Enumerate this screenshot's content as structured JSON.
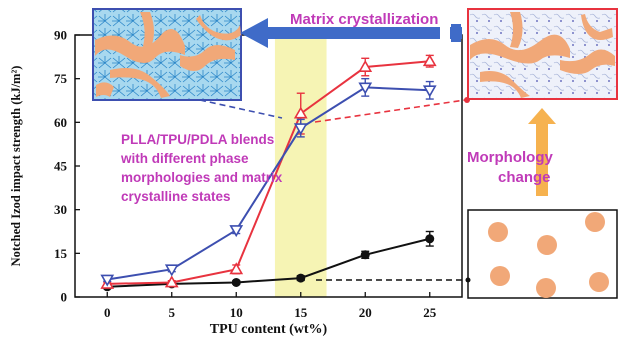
{
  "chart_data": {
    "type": "line",
    "xlabel": "TPU content (wt%)",
    "ylabel": "Notched Izod impact strength (kJ/m²)",
    "xlim": [
      -2.5,
      27.5
    ],
    "ylim": [
      0,
      90
    ],
    "x_ticks": [
      "0",
      "5",
      "10",
      "15",
      "20",
      "25"
    ],
    "y_ticks": [
      "0",
      "15",
      "30",
      "45",
      "60",
      "75",
      "90"
    ],
    "highlight_band": [
      13,
      17
    ],
    "colors": {
      "black": "#111111",
      "red": "#e8333f",
      "blue": "#3d4fb0",
      "band": "#f6f4b4",
      "pink": "#c03ab8",
      "arrow": "#3f6bc8",
      "orange": "#f6b24f"
    },
    "series": [
      {
        "marker": "circle",
        "color": "#111111",
        "x": [
          0,
          5,
          10,
          15,
          20,
          25
        ],
        "y": [
          3.5,
          4.5,
          5,
          6.5,
          14.5,
          20
        ],
        "err": [
          0.6,
          0.6,
          0.6,
          0.8,
          1.2,
          2.5
        ]
      },
      {
        "marker": "triangle-up-open",
        "color": "#e8333f",
        "x": [
          0,
          5,
          10,
          15,
          20,
          25
        ],
        "y": [
          4.5,
          5,
          9.5,
          63,
          79,
          81
        ],
        "err": [
          0.6,
          0.6,
          1.5,
          7,
          3,
          2
        ]
      },
      {
        "marker": "triangle-down-open",
        "color": "#3d4fb0",
        "x": [
          0,
          5,
          10,
          15,
          20,
          25
        ],
        "y": [
          6,
          9.5,
          23,
          58,
          72,
          71
        ],
        "err": [
          0.6,
          0.8,
          1.2,
          3,
          3,
          3
        ]
      }
    ],
    "annotations": {
      "matrix": "Matrix crystallization",
      "blends": [
        "PLLA/TPU/PDLA blends",
        "with different phase",
        "morphologies and matrix",
        "crystalline states"
      ],
      "morphology": [
        "Morphology",
        "change"
      ]
    }
  }
}
